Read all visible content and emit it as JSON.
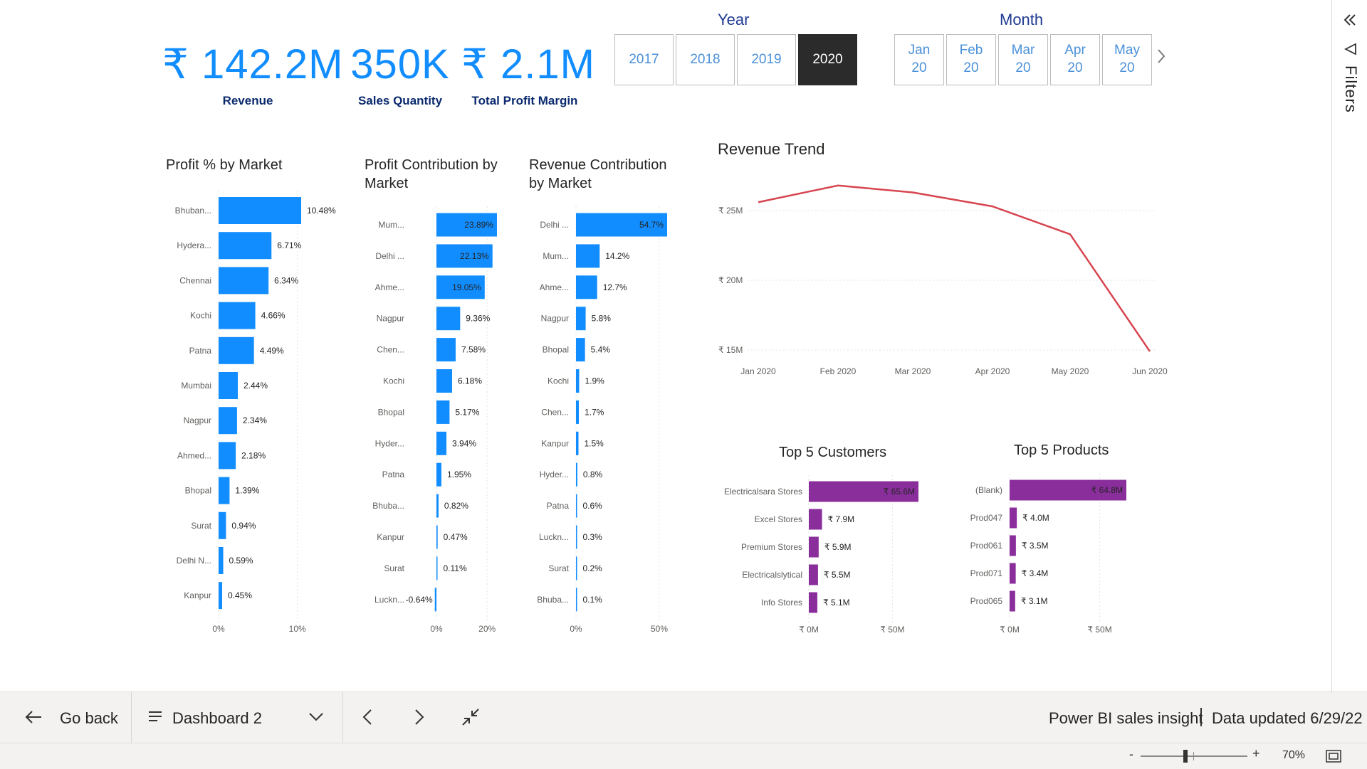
{
  "kpis": [
    {
      "value": "₹ 142.2M",
      "label": "Revenue"
    },
    {
      "value": "350K",
      "label": "Sales Quantity"
    },
    {
      "value": "₹ 2.1M",
      "label": "Total Profit Margin"
    }
  ],
  "year_slicer": {
    "title": "Year",
    "options": [
      "2017",
      "2018",
      "2019",
      "2020"
    ],
    "selected": "2020"
  },
  "month_slicer": {
    "title": "Month",
    "options": [
      [
        "Jan",
        "20"
      ],
      [
        "Feb",
        "20"
      ],
      [
        "Mar",
        "20"
      ],
      [
        "Apr",
        "20"
      ],
      [
        "May",
        "20"
      ]
    ],
    "next_icon": "chevron-right-icon"
  },
  "filters_pane": {
    "label": "Filters",
    "collapse_icon": "double-chevron-left-icon",
    "filter_icon": "funnel-icon"
  },
  "colors": {
    "accent": "#118DFF",
    "line": "#D64550",
    "purple": "#8A2E9C",
    "kpi": "#118DFF",
    "selected_bg": "#2B2B2B"
  },
  "chart_data": [
    {
      "id": "profit_pct",
      "type": "bar",
      "orientation": "horizontal",
      "title": "Profit % by Market",
      "categories": [
        "Bhuban...",
        "Hydera...",
        "Chennai",
        "Kochi",
        "Patna",
        "Mumbai",
        "Nagpur",
        "Ahmed...",
        "Bhopal",
        "Surat",
        "Delhi N...",
        "Kanpur"
      ],
      "values": [
        10.48,
        6.71,
        6.34,
        4.66,
        4.49,
        2.44,
        2.34,
        2.18,
        1.39,
        0.94,
        0.59,
        0.45
      ],
      "labels": [
        "10.48%",
        "6.71%",
        "6.34%",
        "4.66%",
        "4.49%",
        "2.44%",
        "2.34%",
        "2.18%",
        "1.39%",
        "0.94%",
        "0.59%",
        "0.45%"
      ],
      "xlim": [
        0,
        10.48
      ],
      "ticks": [
        0,
        10
      ],
      "tick_labels": [
        "0%",
        "10%"
      ],
      "color": "#118DFF"
    },
    {
      "id": "profit_contrib",
      "type": "bar",
      "orientation": "horizontal",
      "title": "Profit Contribution by Market",
      "categories": [
        "Mum...",
        "Delhi ...",
        "Ahme...",
        "Nagpur",
        "Chen...",
        "Kochi",
        "Bhopal",
        "Hyder...",
        "Patna",
        "Bhuba...",
        "Kanpur",
        "Surat",
        "Luckn..."
      ],
      "values": [
        23.89,
        22.13,
        19.05,
        9.36,
        7.58,
        6.18,
        5.17,
        3.94,
        1.95,
        0.82,
        0.47,
        0.11,
        -0.64
      ],
      "labels": [
        "23.89%",
        "22.13%",
        "19.05%",
        "9.36%",
        "7.58%",
        "6.18%",
        "5.17%",
        "3.94%",
        "1.95%",
        "0.82%",
        "0.47%",
        "0.11%",
        "-0.64%"
      ],
      "xlim": [
        0,
        23.89
      ],
      "ticks": [
        0,
        20
      ],
      "tick_labels": [
        "0%",
        "20%"
      ],
      "color": "#118DFF"
    },
    {
      "id": "revenue_contrib",
      "type": "bar",
      "orientation": "horizontal",
      "title": "Revenue Contribution by Market",
      "categories": [
        "Delhi ...",
        "Mum...",
        "Ahme...",
        "Nagpur",
        "Bhopal",
        "Kochi",
        "Chen...",
        "Kanpur",
        "Hyder...",
        "Patna",
        "Luckn...",
        "Surat",
        "Bhuba..."
      ],
      "values": [
        54.7,
        14.2,
        12.7,
        5.8,
        5.4,
        1.9,
        1.7,
        1.5,
        0.8,
        0.6,
        0.3,
        0.2,
        0.1
      ],
      "labels": [
        "54.7%",
        "14.2%",
        "12.7%",
        "5.8%",
        "5.4%",
        "1.9%",
        "1.7%",
        "1.5%",
        "0.8%",
        "0.6%",
        "0.3%",
        "0.2%",
        "0.1%"
      ],
      "xlim": [
        0,
        54.7
      ],
      "ticks": [
        0,
        50
      ],
      "tick_labels": [
        "0%",
        "50%"
      ],
      "color": "#118DFF"
    },
    {
      "id": "revenue_trend",
      "type": "line",
      "title": "Revenue Trend",
      "x": [
        "Jan 2020",
        "Feb 2020",
        "Mar 2020",
        "Apr 2020",
        "May 2020",
        "Jun 2020"
      ],
      "y": [
        25.6,
        26.8,
        26.3,
        25.3,
        23.3,
        14.9
      ],
      "ylim": [
        15,
        25
      ],
      "yticks": [
        15,
        20,
        25
      ],
      "ytick_labels": [
        "₹ 15M",
        "₹ 20M",
        "₹ 25M"
      ],
      "grid": true,
      "color": "#D64550"
    },
    {
      "id": "top_customers",
      "type": "bar",
      "orientation": "horizontal",
      "title": "Top 5 Customers",
      "categories": [
        "Electricalsara Stores",
        "Excel Stores",
        "Premium Stores",
        "Electricalslytical",
        "Info Stores"
      ],
      "values": [
        65.6,
        7.9,
        5.9,
        5.5,
        5.1
      ],
      "labels": [
        "₹ 65.6M",
        "₹ 7.9M",
        "₹ 5.9M",
        "₹ 5.5M",
        "₹ 5.1M"
      ],
      "xlim": [
        0,
        65.6
      ],
      "ticks": [
        0,
        50
      ],
      "tick_labels": [
        "₹ 0M",
        "₹ 50M"
      ],
      "color": "#8A2E9C"
    },
    {
      "id": "top_products",
      "type": "bar",
      "orientation": "horizontal",
      "title": "Top 5 Products",
      "categories": [
        "(Blank)",
        "Prod047",
        "Prod061",
        "Prod071",
        "Prod065"
      ],
      "values": [
        64.8,
        4.0,
        3.5,
        3.4,
        3.1
      ],
      "labels": [
        "₹ 64.8M",
        "₹ 4.0M",
        "₹ 3.5M",
        "₹ 3.4M",
        "₹ 3.1M"
      ],
      "xlim": [
        0,
        64.8
      ],
      "ticks": [
        0,
        50
      ],
      "tick_labels": [
        "₹ 0M",
        "₹ 50M"
      ],
      "color": "#8A2E9C"
    }
  ],
  "bottom_bar": {
    "go_back": "Go back",
    "page_name": "Dashboard 2",
    "report_name": "Power BI sales insight",
    "data_updated": "Data updated 6/29/22"
  },
  "status_bar": {
    "zoom": "70%",
    "zoom_level": 0.42
  }
}
